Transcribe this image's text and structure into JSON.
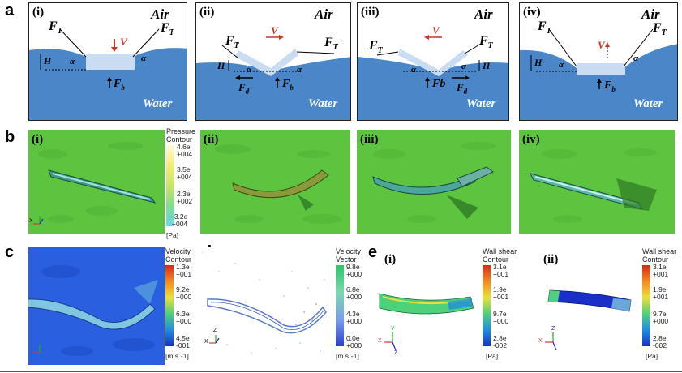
{
  "panel_a": {
    "letter": "a",
    "panels": [
      {
        "label": "(i)",
        "air": "Air",
        "water": "Water",
        "ft_left": "F",
        "ft_left_sub": "T",
        "ft_right": "F",
        "ft_right_sub": "T",
        "v": "V",
        "fb": "F",
        "fb_sub": "b",
        "h": "H",
        "alpha": "α"
      },
      {
        "label": "(ii)",
        "air": "Air",
        "water": "Water",
        "ft_left": "F",
        "ft_left_sub": "T",
        "ft_right": "F",
        "ft_right_sub": "T",
        "v": "V",
        "fb": "F",
        "fb_sub": "b",
        "fd": "F",
        "fd_sub": "d",
        "h": "H",
        "alpha": "α"
      },
      {
        "label": "(iii)",
        "air": "Air",
        "water": "Water",
        "ft_left": "F",
        "ft_left_sub": "T",
        "ft_right": "F",
        "ft_right_sub": "T",
        "v": "V",
        "fb": "Fb",
        "fd": "F",
        "fd_sub": "d",
        "h": "H",
        "alpha": "α"
      },
      {
        "label": "(iv)",
        "air": "Air",
        "water": "Water",
        "ft_left": "F",
        "ft_left_sub": "T",
        "ft_right": "F",
        "ft_right_sub": "T",
        "v": "V",
        "fb": "F",
        "fb_sub": "b",
        "h": "H",
        "alpha": "α"
      }
    ]
  },
  "panel_b": {
    "letter": "b",
    "labels": [
      "(i)",
      "(ii)",
      "(iii)",
      "(iv)"
    ],
    "colorbar": {
      "title": [
        "Pressure",
        "Contour"
      ],
      "ticks": [
        [
          "4.6e",
          "+004"
        ],
        [
          "3.5e",
          "+004"
        ],
        [
          "2.3e",
          "+002"
        ],
        [
          "-3.2e",
          "+004"
        ]
      ],
      "unit": "[Pa]",
      "colors": [
        "#fffad8",
        "#f2ec7a",
        "#c9e46a",
        "#7fdc90",
        "#6fd8e8"
      ]
    }
  },
  "panel_c": {
    "letter": "c",
    "colorbar": {
      "title": [
        "Velocity",
        "Contour"
      ],
      "ticks": [
        [
          "1.3e",
          "+001"
        ],
        [
          "9.2e",
          "+000"
        ],
        [
          "6.3e",
          "+000"
        ],
        [
          "4.5e",
          "-001"
        ]
      ],
      "unit": "[m sˉ-1]",
      "colors": [
        "#d6281c",
        "#f58a1e",
        "#e8e03a",
        "#4fd07a",
        "#1f8de0",
        "#1a2fc8"
      ]
    }
  },
  "panel_d": {
    "letter": "d",
    "colorbar": {
      "title": [
        "Velocity",
        "Vector"
      ],
      "ticks": [
        [
          "9.8e",
          "+000"
        ],
        [
          "6.8e",
          "+000"
        ],
        [
          "4.3e",
          "+000"
        ],
        [
          "0.0e",
          "+000"
        ]
      ],
      "unit": "[m sˉ-1]",
      "colors": [
        "#2bc46a",
        "#7fd6b0",
        "#7aa0e8",
        "#2a3fd0"
      ]
    }
  },
  "panel_e": {
    "letter": "e",
    "labels": [
      "(i)",
      "(ii)"
    ],
    "colorbar": {
      "title": [
        "Wall shear",
        "Contour"
      ],
      "ticks": [
        [
          "3.1e",
          "+001"
        ],
        [
          "1.9e",
          "+001"
        ],
        [
          "9.7e",
          "+000"
        ],
        [
          "2.8e",
          "-002"
        ]
      ],
      "unit": "[Pa]",
      "colors": [
        "#d6281c",
        "#f58a1e",
        "#e8e03a",
        "#4fd07a",
        "#1f8de0",
        "#1a2fc8"
      ]
    }
  },
  "axes": {
    "x": "X",
    "y": "Y",
    "z": "Z"
  },
  "colors": {
    "water": "#4a86c8",
    "water_dark": "#2f64a8",
    "air": "#ffffff",
    "film": "#c9dcf2",
    "arrow_red": "#c0392b",
    "sim_green": "#59c13d"
  }
}
